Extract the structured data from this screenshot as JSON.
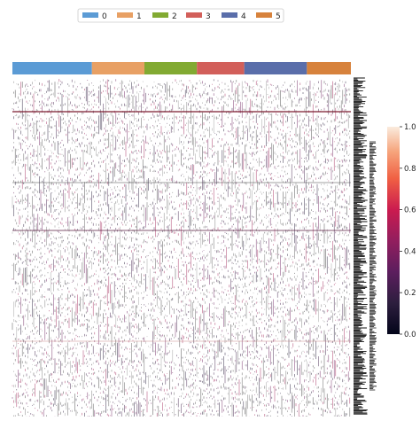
{
  "chart_data": {
    "type": "heatmap",
    "title": "",
    "xlabel": "",
    "ylabel": "",
    "legend": {
      "placement": "top-center",
      "entries": [
        "0",
        "1",
        "2",
        "3",
        "4",
        "5"
      ]
    },
    "groups": [
      {
        "name": "0",
        "color": "#5b9bd5",
        "fraction": 0.235
      },
      {
        "name": "1",
        "color": "#e8a064",
        "fraction": 0.155
      },
      {
        "name": "2",
        "color": "#82aa32",
        "fraction": 0.155
      },
      {
        "name": "3",
        "color": "#d25f5a",
        "fraction": 0.14
      },
      {
        "name": "4",
        "color": "#5a6eaa",
        "fraction": 0.185
      },
      {
        "name": "5",
        "color": "#d7823c",
        "fraction": 0.13
      }
    ],
    "colorbar": {
      "range": [
        0.0,
        1.0
      ],
      "ticks": [
        "0.0",
        "0.2",
        "0.4",
        "0.6",
        "0.8",
        "1.0"
      ],
      "colormap": "rocket_r"
    },
    "grid": false,
    "row_labels_visible": false
  }
}
